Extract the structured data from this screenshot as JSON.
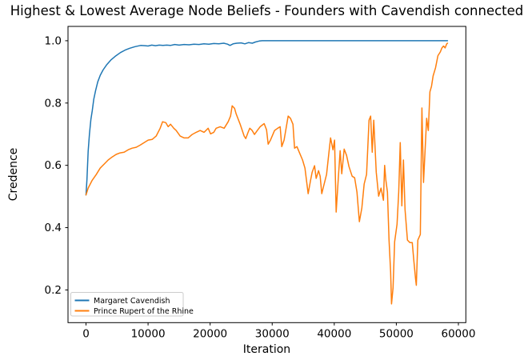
{
  "figure": {
    "background": "#ffffff",
    "spine_color": "#000000"
  },
  "chart_data": {
    "type": "line",
    "title": "Highest & Lowest Average Node Beliefs - Founders with Cavendish connected",
    "xlabel": "Iteration",
    "ylabel": "Credence",
    "xlim": [
      -2900,
      61200
    ],
    "ylim": [
      0.095,
      1.046
    ],
    "xticks": [
      0,
      10000,
      20000,
      30000,
      40000,
      50000,
      60000
    ],
    "yticks": [
      0.2,
      0.4,
      0.6,
      0.8,
      1.0
    ],
    "grid": false,
    "legend": {
      "position": "lower-left",
      "framed": true
    },
    "series": [
      {
        "name": "Margaret Cavendish",
        "color": "#1f77b4",
        "points": [
          [
            0,
            0.505
          ],
          [
            150,
            0.555
          ],
          [
            350,
            0.645
          ],
          [
            550,
            0.7
          ],
          [
            780,
            0.747
          ],
          [
            1000,
            0.775
          ],
          [
            1250,
            0.812
          ],
          [
            1550,
            0.84
          ],
          [
            1900,
            0.868
          ],
          [
            2300,
            0.889
          ],
          [
            2750,
            0.906
          ],
          [
            3300,
            0.922
          ],
          [
            4000,
            0.938
          ],
          [
            4700,
            0.95
          ],
          [
            5550,
            0.962
          ],
          [
            6300,
            0.97
          ],
          [
            7050,
            0.976
          ],
          [
            7900,
            0.981
          ],
          [
            8800,
            0.985
          ],
          [
            9500,
            0.984
          ],
          [
            10000,
            0.983
          ],
          [
            10600,
            0.986
          ],
          [
            11200,
            0.984
          ],
          [
            11800,
            0.986
          ],
          [
            12400,
            0.985
          ],
          [
            13000,
            0.986
          ],
          [
            13600,
            0.985
          ],
          [
            14300,
            0.988
          ],
          [
            15000,
            0.986
          ],
          [
            15800,
            0.988
          ],
          [
            16600,
            0.987
          ],
          [
            17400,
            0.989
          ],
          [
            18200,
            0.988
          ],
          [
            19000,
            0.99
          ],
          [
            19800,
            0.989
          ],
          [
            20600,
            0.991
          ],
          [
            21400,
            0.99
          ],
          [
            22200,
            0.992
          ],
          [
            22800,
            0.989
          ],
          [
            23200,
            0.985
          ],
          [
            23700,
            0.99
          ],
          [
            24300,
            0.992
          ],
          [
            25000,
            0.993
          ],
          [
            25600,
            0.99
          ],
          [
            26200,
            0.994
          ],
          [
            26800,
            0.992
          ],
          [
            27300,
            0.996
          ],
          [
            27900,
            0.999
          ],
          [
            28400,
            1.0
          ],
          [
            58250,
            1.0
          ]
        ]
      },
      {
        "name": "Prince Rupert of the Rhine",
        "color": "#ff7f0e",
        "points": [
          [
            0,
            0.505
          ],
          [
            350,
            0.527
          ],
          [
            990,
            0.552
          ],
          [
            1640,
            0.57
          ],
          [
            2280,
            0.591
          ],
          [
            2930,
            0.604
          ],
          [
            3570,
            0.617
          ],
          [
            4210,
            0.627
          ],
          [
            4860,
            0.635
          ],
          [
            5500,
            0.64
          ],
          [
            6150,
            0.642
          ],
          [
            6790,
            0.65
          ],
          [
            7440,
            0.655
          ],
          [
            8080,
            0.658
          ],
          [
            8720,
            0.665
          ],
          [
            9370,
            0.673
          ],
          [
            10010,
            0.681
          ],
          [
            10660,
            0.683
          ],
          [
            11300,
            0.694
          ],
          [
            11950,
            0.719
          ],
          [
            12330,
            0.74
          ],
          [
            12850,
            0.737
          ],
          [
            13240,
            0.724
          ],
          [
            13620,
            0.732
          ],
          [
            14140,
            0.719
          ],
          [
            14530,
            0.712
          ],
          [
            15170,
            0.694
          ],
          [
            15810,
            0.688
          ],
          [
            16460,
            0.688
          ],
          [
            17100,
            0.699
          ],
          [
            17750,
            0.706
          ],
          [
            18390,
            0.712
          ],
          [
            19030,
            0.706
          ],
          [
            19680,
            0.719
          ],
          [
            20070,
            0.701
          ],
          [
            20580,
            0.706
          ],
          [
            20970,
            0.719
          ],
          [
            21620,
            0.724
          ],
          [
            22260,
            0.719
          ],
          [
            22900,
            0.74
          ],
          [
            23290,
            0.758
          ],
          [
            23550,
            0.791
          ],
          [
            23930,
            0.783
          ],
          [
            24190,
            0.765
          ],
          [
            24840,
            0.732
          ],
          [
            25480,
            0.694
          ],
          [
            25740,
            0.686
          ],
          [
            26120,
            0.706
          ],
          [
            26380,
            0.719
          ],
          [
            26770,
            0.712
          ],
          [
            27150,
            0.699
          ],
          [
            27670,
            0.714
          ],
          [
            28060,
            0.724
          ],
          [
            28700,
            0.734
          ],
          [
            29090,
            0.714
          ],
          [
            29350,
            0.668
          ],
          [
            29730,
            0.681
          ],
          [
            30380,
            0.712
          ],
          [
            30890,
            0.719
          ],
          [
            31280,
            0.724
          ],
          [
            31540,
            0.66
          ],
          [
            31920,
            0.681
          ],
          [
            32570,
            0.758
          ],
          [
            32950,
            0.751
          ],
          [
            33340,
            0.732
          ],
          [
            33600,
            0.655
          ],
          [
            33990,
            0.66
          ],
          [
            34370,
            0.642
          ],
          [
            34890,
            0.617
          ],
          [
            35280,
            0.591
          ],
          [
            35790,
            0.509
          ],
          [
            36180,
            0.552
          ],
          [
            36440,
            0.578
          ],
          [
            36820,
            0.599
          ],
          [
            37080,
            0.558
          ],
          [
            37470,
            0.583
          ],
          [
            37730,
            0.565
          ],
          [
            37990,
            0.509
          ],
          [
            38370,
            0.54
          ],
          [
            38760,
            0.571
          ],
          [
            39150,
            0.642
          ],
          [
            39400,
            0.688
          ],
          [
            39790,
            0.65
          ],
          [
            40050,
            0.681
          ],
          [
            40310,
            0.45
          ],
          [
            40690,
            0.571
          ],
          [
            40950,
            0.647
          ],
          [
            41210,
            0.573
          ],
          [
            41600,
            0.652
          ],
          [
            41980,
            0.632
          ],
          [
            42370,
            0.596
          ],
          [
            42890,
            0.565
          ],
          [
            43280,
            0.56
          ],
          [
            43660,
            0.514
          ],
          [
            44050,
            0.419
          ],
          [
            44440,
            0.463
          ],
          [
            44820,
            0.54
          ],
          [
            45210,
            0.571
          ],
          [
            45600,
            0.745
          ],
          [
            45860,
            0.758
          ],
          [
            46120,
            0.642
          ],
          [
            46370,
            0.745
          ],
          [
            46760,
            0.578
          ],
          [
            47150,
            0.501
          ],
          [
            47540,
            0.527
          ],
          [
            47920,
            0.488
          ],
          [
            48120,
            0.6
          ],
          [
            48310,
            0.553
          ],
          [
            48570,
            0.514
          ],
          [
            48830,
            0.36
          ],
          [
            49090,
            0.257
          ],
          [
            49220,
            0.155
          ],
          [
            49470,
            0.206
          ],
          [
            49730,
            0.355
          ],
          [
            50120,
            0.411
          ],
          [
            50380,
            0.514
          ],
          [
            50630,
            0.673
          ],
          [
            50890,
            0.47
          ],
          [
            51150,
            0.617
          ],
          [
            51410,
            0.458
          ],
          [
            51790,
            0.36
          ],
          [
            52180,
            0.352
          ],
          [
            52570,
            0.352
          ],
          [
            52830,
            0.291
          ],
          [
            53090,
            0.237
          ],
          [
            53220,
            0.215
          ],
          [
            53470,
            0.36
          ],
          [
            53860,
            0.378
          ],
          [
            54120,
            0.784
          ],
          [
            54380,
            0.545
          ],
          [
            54890,
            0.751
          ],
          [
            55150,
            0.712
          ],
          [
            55410,
            0.836
          ],
          [
            55670,
            0.854
          ],
          [
            55930,
            0.887
          ],
          [
            56310,
            0.913
          ],
          [
            56700,
            0.952
          ],
          [
            57090,
            0.964
          ],
          [
            57350,
            0.977
          ],
          [
            57600,
            0.983
          ],
          [
            57860,
            0.977
          ],
          [
            58120,
            0.99
          ],
          [
            58250,
            0.992
          ]
        ]
      }
    ]
  }
}
